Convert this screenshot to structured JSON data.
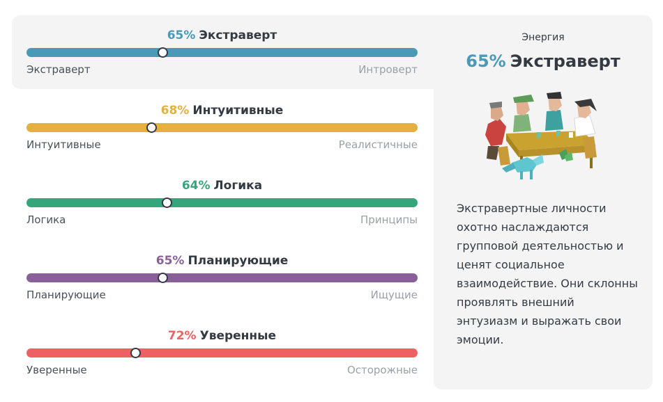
{
  "traits": [
    {
      "percent": "65%",
      "name": "Экстраверт",
      "left_label": "Экстраверт",
      "right_label": "Интроверт",
      "color": "#4a99b7",
      "score": 0.35,
      "knob_position": 0.35
    },
    {
      "percent": "68%",
      "name": "Интуитивные",
      "left_label": "Интуитивные",
      "right_label": "Реалистичные",
      "color": "#e3b13f",
      "score": 0.32,
      "knob_position": 0.32
    },
    {
      "percent": "64%",
      "name": "Логика",
      "left_label": "Логика",
      "right_label": "Принципы",
      "color": "#35a57b",
      "score": 0.36,
      "knob_position": 0.36
    },
    {
      "percent": "65%",
      "name": "Планирующие",
      "left_label": "Планирующие",
      "right_label": "Ищущие",
      "color": "#8a6098",
      "score": 0.35,
      "knob_position": 0.35
    },
    {
      "percent": "72%",
      "name": "Уверенные",
      "left_label": "Уверенные",
      "right_label": "Осторожные",
      "color": "#ee6163",
      "score": 0.28,
      "knob_position": 0.28
    }
  ],
  "panel": {
    "category": "Энергия",
    "percent": "65%",
    "trait": "Экстраверт",
    "illustration_icon": "group-at-table-illustration",
    "description": "Экстравертные личности охотно наслаждаются групповой деятельностью и ценят социальное взаимодействие. Они склонны проявлять внешний энтузиазм и выражать свои эмоции."
  }
}
